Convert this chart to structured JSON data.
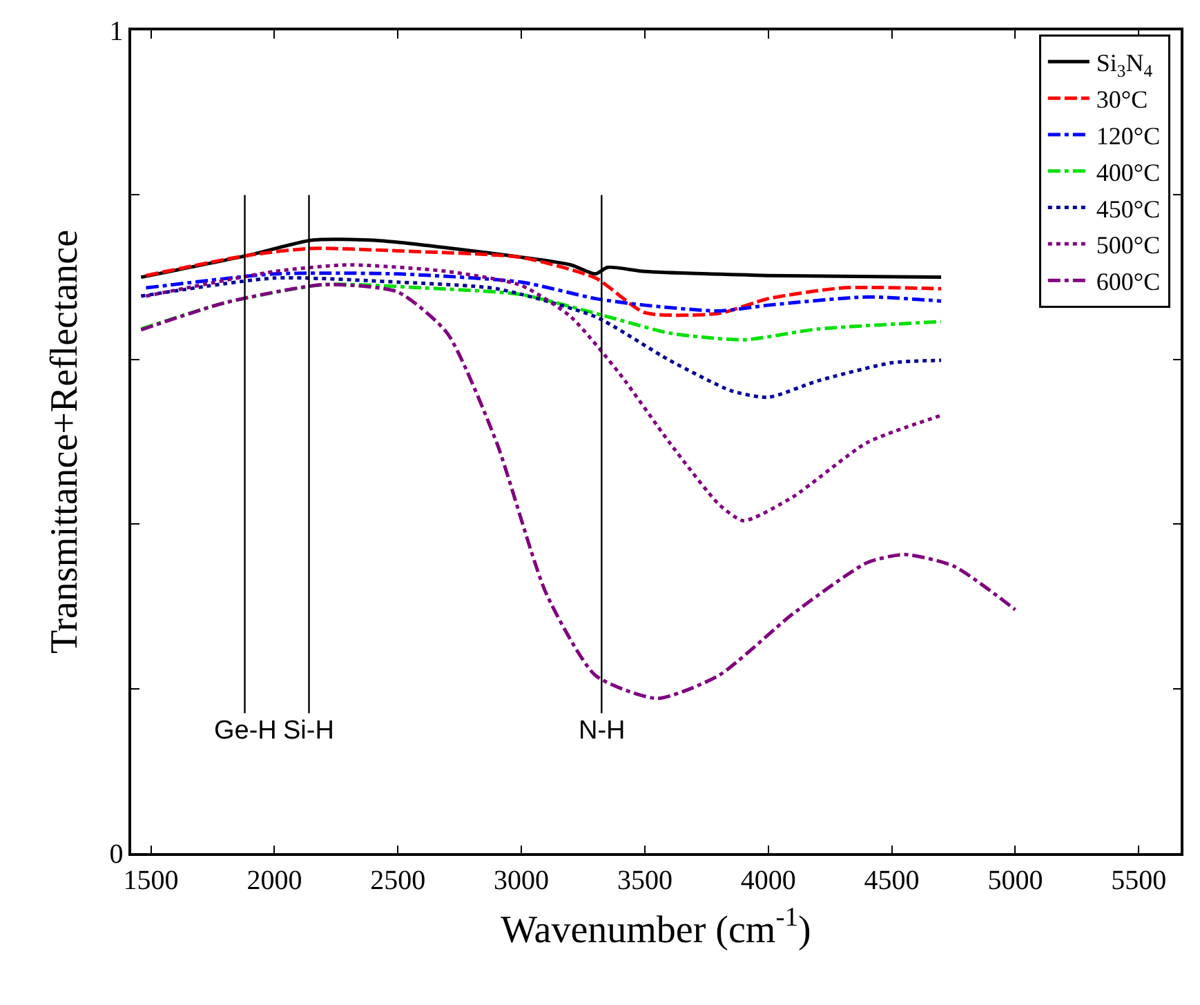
{
  "chart_data": {
    "type": "line",
    "xlabel": "Wavenumber (cm$^{-1}$)",
    "ylabel": "Transmittance+Reflectance",
    "xlim": [
      1420,
      5670
    ],
    "xticks": [
      1500,
      2000,
      2500,
      3000,
      3500,
      4000,
      4500,
      5000,
      5500
    ],
    "ylim": [
      0,
      1
    ],
    "yticks": [
      0,
      {
        "value": 0.2,
        "label": null
      },
      {
        "value": 0.4,
        "label": null
      },
      {
        "value": 0.6,
        "label": null
      },
      {
        "value": 0.8,
        "label": null
      },
      1
    ],
    "legend": "top right",
    "marker": "none",
    "ref_lines": [
      {
        "axis": "x",
        "value": 1880,
        "label": "Ge-H",
        "color": "#000000"
      },
      {
        "axis": "x",
        "value": 2140,
        "label": "Si-H",
        "color": "#000000"
      },
      {
        "axis": "x",
        "value": 3325,
        "label": "N-H",
        "color": "#000000"
      }
    ],
    "series": [
      {
        "name": "Si$_{3}$N$_{4}$",
        "color": "#000000",
        "line_style": "solid",
        "x": [
          1460,
          1900,
          2150,
          2400,
          2800,
          3200,
          3300,
          3350,
          3500,
          4000,
          4700
        ],
        "values": [
          0.7,
          0.727,
          0.745,
          0.745,
          0.732,
          0.715,
          0.704,
          0.712,
          0.707,
          0.702,
          0.7
        ]
      },
      {
        "name": "30°C",
        "color": "#ff0000",
        "line_style": "dashed",
        "x": [
          1480,
          1900,
          2150,
          2500,
          3000,
          3300,
          3500,
          3800,
          4000,
          4300,
          4700
        ],
        "values": [
          0.702,
          0.727,
          0.735,
          0.732,
          0.724,
          0.699,
          0.657,
          0.656,
          0.674,
          0.687,
          0.686
        ]
      },
      {
        "name": "120°C",
        "color": "#0000ff",
        "line_style": "dashdot",
        "x": [
          1480,
          2000,
          2500,
          3000,
          3300,
          3500,
          3800,
          4000,
          4400,
          4700
        ],
        "values": [
          0.687,
          0.704,
          0.704,
          0.694,
          0.674,
          0.666,
          0.659,
          0.666,
          0.676,
          0.671
        ]
      },
      {
        "name": "400°C",
        "color": "#00e000",
        "line_style": "dashdot",
        "x": [
          1460,
          1800,
          2200,
          2600,
          3000,
          3350,
          3600,
          3900,
          4200,
          4700
        ],
        "values": [
          0.637,
          0.669,
          0.691,
          0.687,
          0.679,
          0.652,
          0.632,
          0.624,
          0.637,
          0.646
        ]
      },
      {
        "name": "450°C",
        "color": "#000099",
        "line_style": "dotted",
        "x": [
          1460,
          2000,
          2500,
          2900,
          3300,
          3600,
          3850,
          4000,
          4200,
          4500,
          4700
        ],
        "values": [
          0.677,
          0.699,
          0.694,
          0.686,
          0.652,
          0.599,
          0.562,
          0.554,
          0.574,
          0.596,
          0.599
        ]
      },
      {
        "name": "500°C",
        "color": "#800080",
        "line_style": "dotted",
        "x": [
          1480,
          2000,
          2300,
          2700,
          3000,
          3200,
          3400,
          3600,
          3800,
          3900,
          4100,
          4400,
          4700
        ],
        "values": [
          0.677,
          0.707,
          0.715,
          0.707,
          0.69,
          0.652,
          0.582,
          0.499,
          0.424,
          0.404,
          0.433,
          0.499,
          0.532
        ]
      },
      {
        "name": "600°C",
        "color": "#800080",
        "line_style": "dashdot",
        "x": [
          1460,
          1800,
          2200,
          2500,
          2700,
          2900,
          3100,
          3300,
          3550,
          3800,
          4100,
          4400,
          4550,
          4750,
          5000
        ],
        "values": [
          0.636,
          0.669,
          0.691,
          0.682,
          0.632,
          0.499,
          0.316,
          0.216,
          0.188,
          0.216,
          0.291,
          0.353,
          0.363,
          0.349,
          0.296
        ]
      }
    ]
  }
}
